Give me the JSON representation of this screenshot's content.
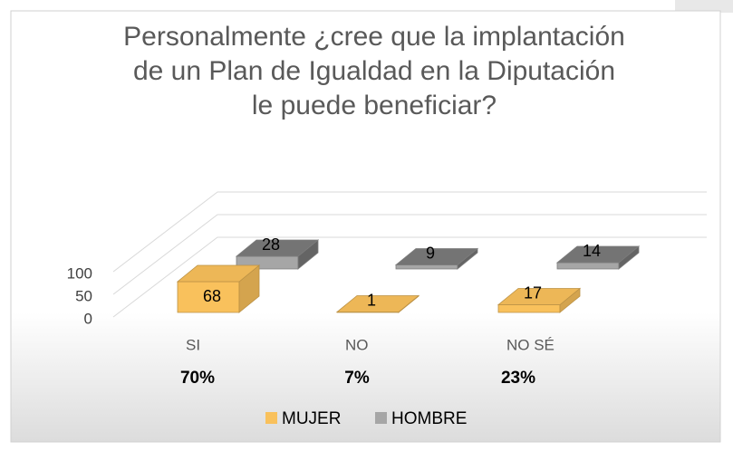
{
  "chart_data": {
    "type": "bar3d",
    "title": [
      "Personalmente ¿cree que la implantación",
      "de un Plan de Igualdad en la Diputación",
      "le puede beneficiar?"
    ],
    "categories": [
      "SI",
      "NO",
      "NO SÉ"
    ],
    "percentages": [
      "70%",
      "7%",
      "23%"
    ],
    "series": [
      {
        "name": "MUJER",
        "color": "#f9c15c",
        "values": [
          68,
          1,
          17
        ]
      },
      {
        "name": "HOMBRE",
        "color": "#a6a6a6",
        "values": [
          28,
          9,
          14
        ]
      }
    ],
    "ylim": [
      0,
      200
    ],
    "yticks": [
      0,
      50,
      100
    ],
    "grid": true,
    "legend": "bottom"
  }
}
